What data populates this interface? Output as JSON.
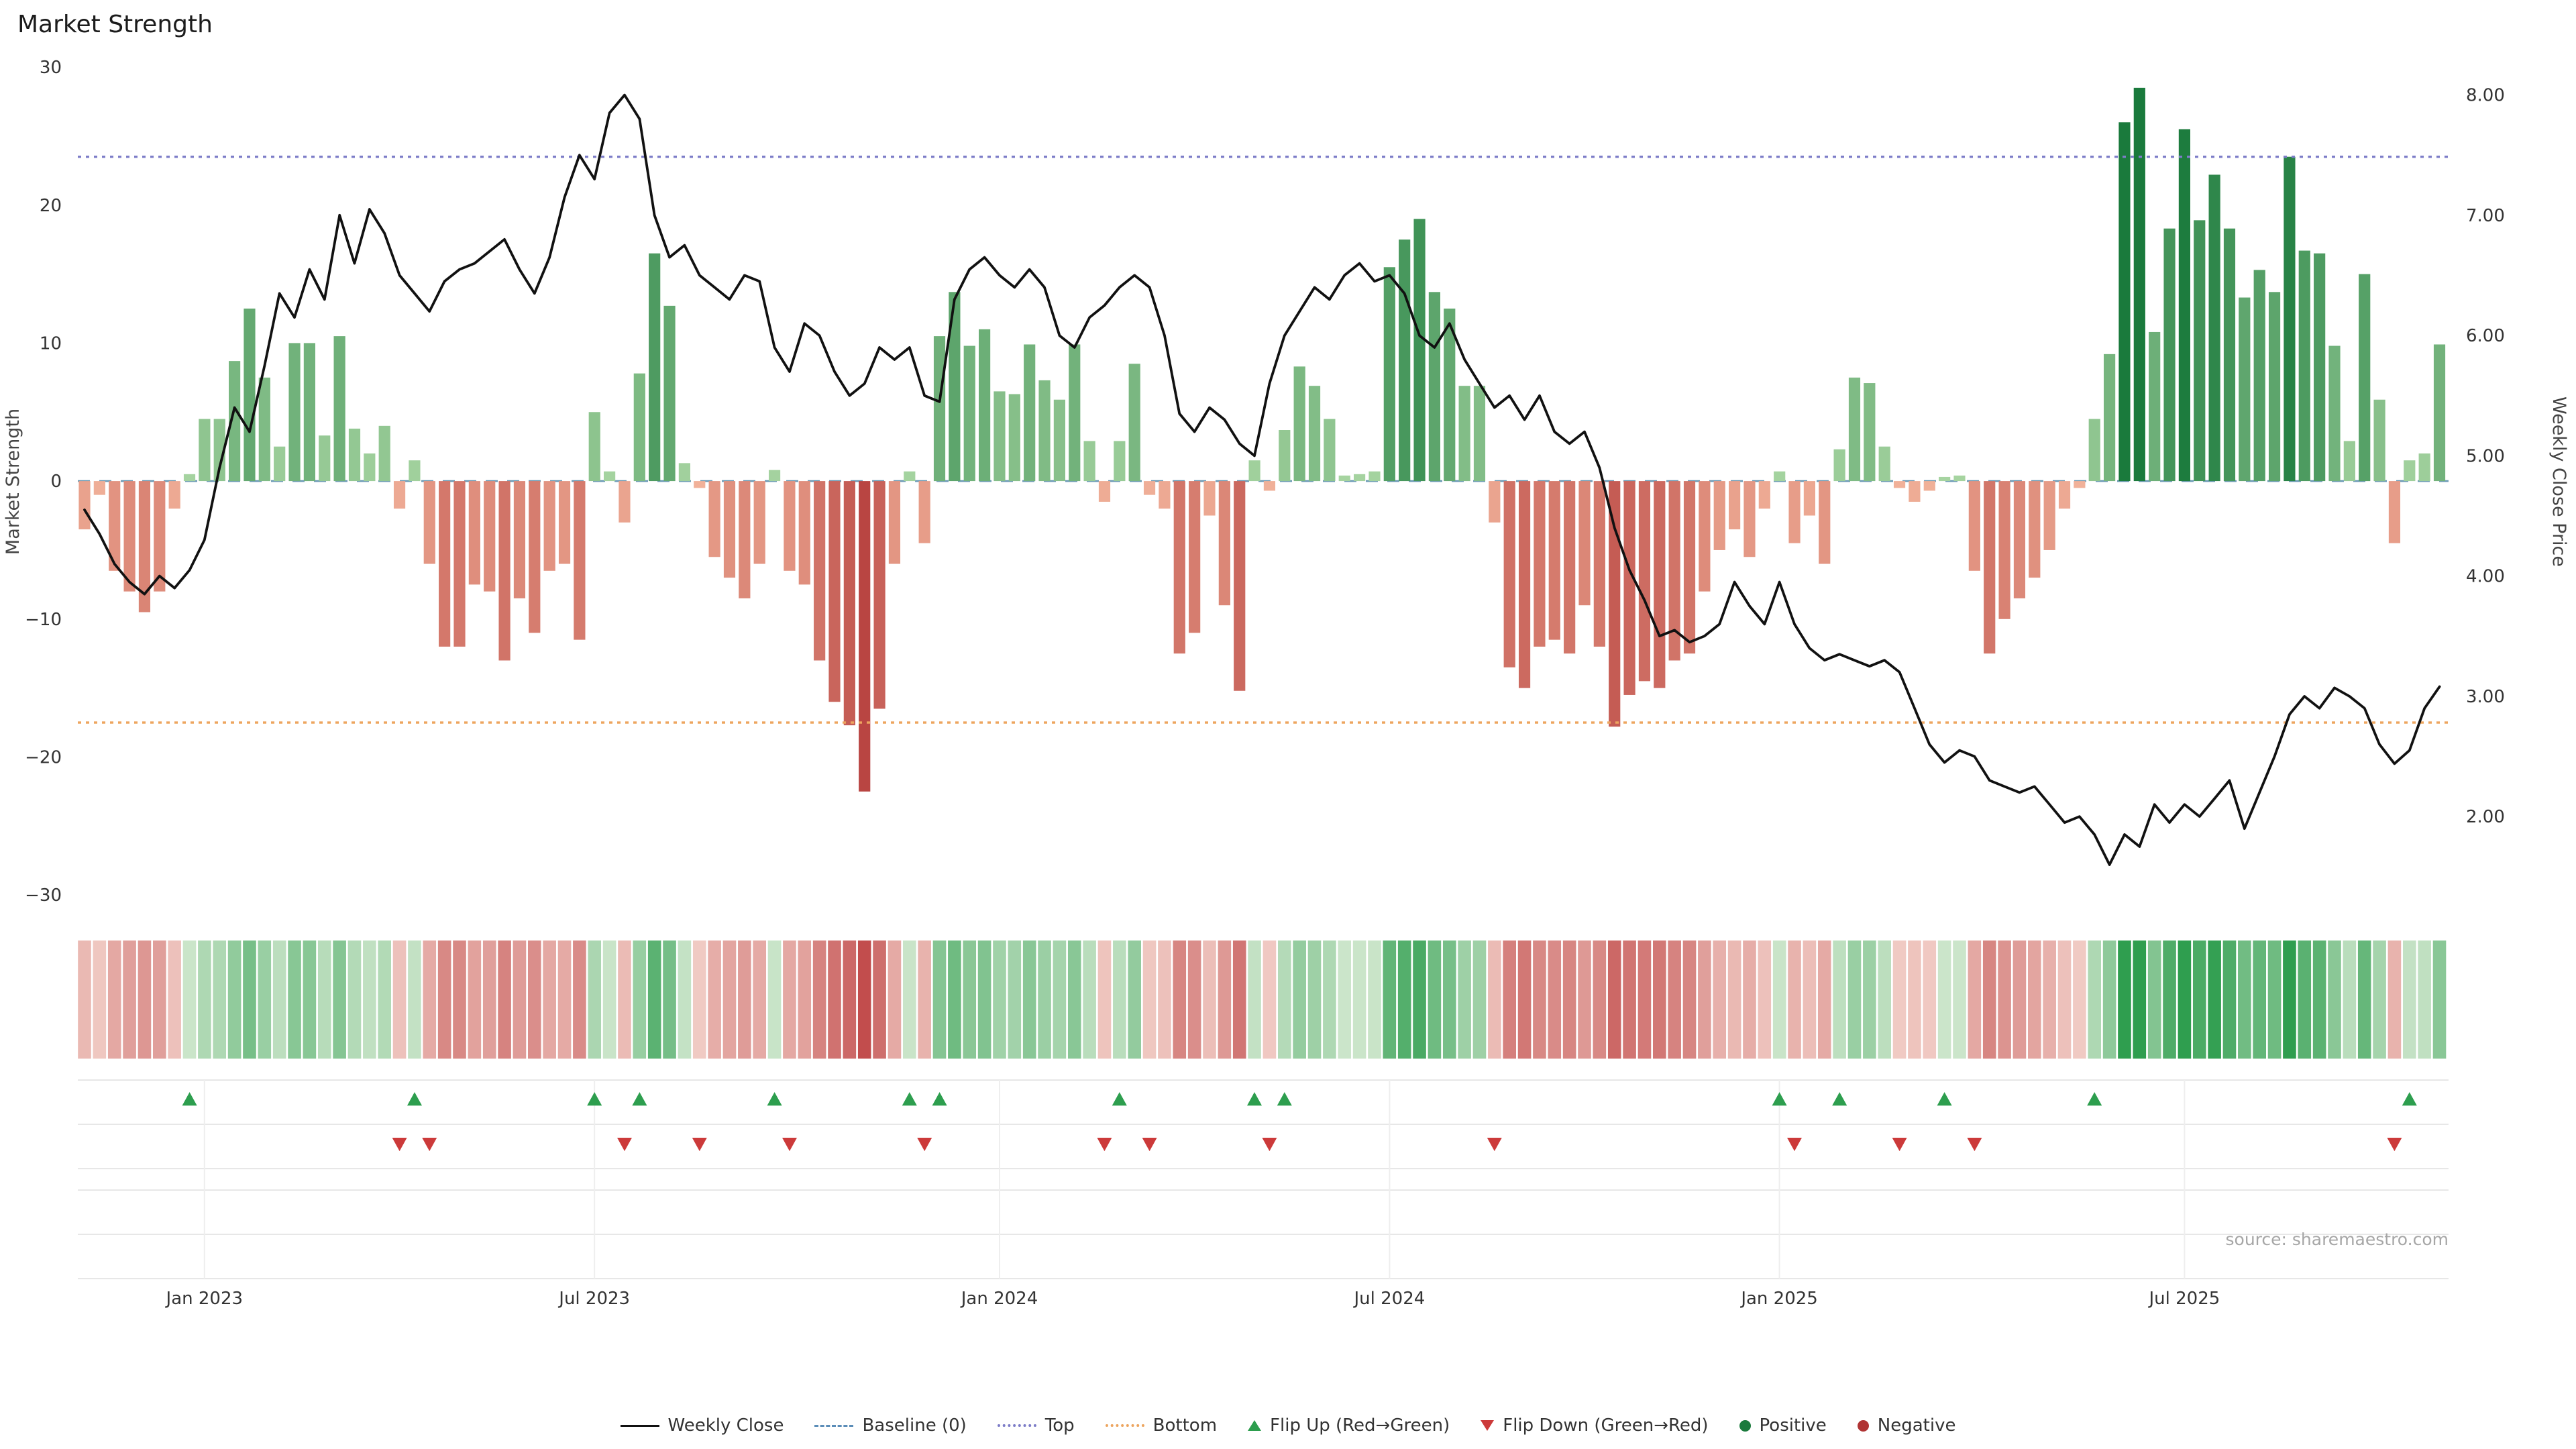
{
  "page": {
    "title": "Market Strength",
    "source": "source: sharemaestro.com"
  },
  "colors": {
    "positive_light": "#a8d5a2",
    "positive_dark": "#1a7a3c",
    "negative_light": "#f2b39b",
    "negative_dark": "#b03434",
    "heat_pos_light": "#e3f0dd",
    "heat_pos_dark": "#2f9e4f",
    "heat_neg_light": "#f8ded6",
    "heat_neg_dark": "#c14b4b",
    "line": "#111111",
    "baseline": "#6b9ab5",
    "top": "#7d7dc8",
    "bottom": "#eda55f",
    "flip_up": "#2d9e4e",
    "flip_down": "#cc3a3a",
    "axis_text": "#333333",
    "axis_title": "#444444",
    "source_text": "#a6a6a6",
    "grid": "#e7e7e7"
  },
  "chart_data": {
    "type": "bar+line",
    "title": "Market Strength",
    "n_weeks": 158,
    "x_ticks": {
      "indices": [
        8,
        34,
        61,
        87,
        113,
        140
      ],
      "labels": [
        "Jan 2023",
        "Jul 2023",
        "Jan 2024",
        "Jul 2024",
        "Jan 2025",
        "Jul 2025"
      ]
    },
    "y_left": {
      "label": "Market Strength",
      "tick_values": [
        30,
        20,
        10,
        0,
        -10,
        -20,
        -30
      ],
      "tick_labels": [
        "30",
        "20",
        "10",
        "0",
        "−10",
        "−20",
        "−30"
      ],
      "range": [
        -32,
        32
      ]
    },
    "y_right": {
      "label": "Weekly Close Price",
      "tick_values": [
        8,
        7,
        6,
        5,
        4,
        3,
        2
      ],
      "tick_labels": [
        "8.00",
        "7.00",
        "6.00",
        "5.00",
        "4.00",
        "3.00",
        "2.00"
      ],
      "range": [
        2,
        8
      ]
    },
    "reference_lines": [
      {
        "name": "Baseline (0)",
        "value": 0,
        "axis": "left",
        "style": "dashed"
      },
      {
        "name": "Top",
        "value": 23.5,
        "axis": "left",
        "style": "dotted"
      },
      {
        "name": "Bottom",
        "value": -17.5,
        "axis": "left",
        "style": "dotted"
      }
    ],
    "bar_series": {
      "name": "Market Strength",
      "axis": "left",
      "values": [
        -3.5,
        -1.0,
        -6.5,
        -8.0,
        -9.5,
        -8.0,
        -2.0,
        0.5,
        4.5,
        4.5,
        8.7,
        12.5,
        7.5,
        2.5,
        10.0,
        10.0,
        3.3,
        10.5,
        3.8,
        2.0,
        4.0,
        -2.0,
        1.5,
        -6.0,
        -12.0,
        -12.0,
        -7.5,
        -8.0,
        -13.0,
        -8.5,
        -11.0,
        -6.5,
        -6.0,
        -11.5,
        5.0,
        0.7,
        -3.0,
        7.8,
        16.5,
        12.7,
        1.3,
        -0.5,
        -5.5,
        -7.0,
        -8.5,
        -6.0,
        0.8,
        -6.5,
        -7.5,
        -13.0,
        -16.0,
        -17.7,
        -22.5,
        -16.5,
        -6.0,
        0.7,
        -4.5,
        10.5,
        13.7,
        9.8,
        11.0,
        6.5,
        6.3,
        9.9,
        7.3,
        5.9,
        9.9,
        2.9,
        -1.5,
        2.9,
        8.5,
        -1.0,
        -2.0,
        -12.5,
        -11.0,
        -2.5,
        -9.0,
        -15.2,
        1.5,
        -0.7,
        3.7,
        8.3,
        6.9,
        4.5,
        0.4,
        0.5,
        0.7,
        15.5,
        17.5,
        19.0,
        13.7,
        12.5,
        6.9,
        6.9,
        -3.0,
        -13.5,
        -15.0,
        -12.0,
        -11.5,
        -12.5,
        -9.0,
        -12.0,
        -17.8,
        -15.5,
        -14.5,
        -15.0,
        -13.0,
        -12.5,
        -8.0,
        -5.0,
        -3.5,
        -5.5,
        -2.0,
        0.7,
        -4.5,
        -2.5,
        -6.0,
        2.3,
        7.5,
        7.1,
        2.5,
        -0.5,
        -1.5,
        -0.7,
        0.3,
        0.4,
        -6.5,
        -12.5,
        -10.0,
        -8.5,
        -7.0,
        -5.0,
        -2.0,
        -0.5,
        4.5,
        9.2,
        26.0,
        28.5,
        10.8,
        18.3,
        25.5,
        18.9,
        22.2,
        18.3,
        13.3,
        15.3,
        13.7,
        23.5,
        16.7,
        16.5,
        9.8,
        2.9,
        15.0,
        5.9,
        -4.5,
        1.5,
        2.0,
        9.9
      ]
    },
    "line_series": {
      "name": "Weekly Close",
      "axis": "right",
      "values": [
        4.55,
        4.35,
        4.1,
        3.95,
        3.85,
        4.0,
        3.9,
        4.05,
        4.3,
        4.9,
        5.4,
        5.2,
        5.75,
        6.35,
        6.15,
        6.55,
        6.3,
        7.0,
        6.6,
        7.05,
        6.85,
        6.5,
        6.35,
        6.2,
        6.45,
        6.55,
        6.6,
        6.7,
        6.8,
        6.55,
        6.35,
        6.65,
        7.15,
        7.5,
        7.3,
        7.85,
        8.0,
        7.8,
        7.0,
        6.65,
        6.75,
        6.5,
        6.4,
        6.3,
        6.5,
        6.45,
        5.9,
        5.7,
        6.1,
        6.0,
        5.7,
        5.5,
        5.6,
        5.9,
        5.8,
        5.9,
        5.5,
        5.45,
        6.3,
        6.55,
        6.65,
        6.5,
        6.4,
        6.55,
        6.4,
        6.0,
        5.9,
        6.15,
        6.25,
        6.4,
        6.5,
        6.4,
        6.0,
        5.35,
        5.2,
        5.4,
        5.3,
        5.1,
        5.0,
        5.6,
        6.0,
        6.2,
        6.4,
        6.3,
        6.5,
        6.6,
        6.45,
        6.5,
        6.35,
        6.0,
        5.9,
        6.1,
        5.8,
        5.6,
        5.4,
        5.5,
        5.3,
        5.5,
        5.2,
        5.1,
        5.2,
        4.9,
        4.4,
        4.05,
        3.8,
        3.5,
        3.55,
        3.45,
        3.5,
        3.6,
        3.95,
        3.75,
        3.6,
        3.95,
        3.6,
        3.4,
        3.3,
        3.35,
        3.3,
        3.25,
        3.3,
        3.2,
        2.9,
        2.6,
        2.45,
        2.55,
        2.5,
        2.3,
        2.25,
        2.2,
        2.25,
        2.1,
        1.95,
        2.0,
        1.85,
        1.6,
        1.85,
        1.75,
        2.1,
        1.95,
        2.1,
        2.0,
        2.15,
        2.3,
        1.9,
        2.2,
        2.5,
        2.85,
        3.0,
        2.9,
        3.07,
        3.0,
        2.9,
        2.6,
        2.44,
        2.55,
        2.9,
        3.08
      ]
    },
    "flips": {
      "up_weeks": [
        7,
        22,
        34,
        37,
        46,
        55,
        57,
        69,
        78,
        80,
        113,
        117,
        124,
        134,
        155
      ],
      "down_weeks": [
        21,
        23,
        36,
        41,
        47,
        56,
        68,
        71,
        79,
        94,
        114,
        121,
        126,
        154
      ]
    },
    "heatmap_from": "bar_series"
  },
  "legend": {
    "items": [
      {
        "label": "Weekly Close",
        "glyph": "solid-line",
        "color": "#111111"
      },
      {
        "label": "Baseline (0)",
        "glyph": "dashed-line",
        "color": "#5b8db8"
      },
      {
        "label": "Top",
        "glyph": "dotted-line",
        "color": "#7d7dc8"
      },
      {
        "label": "Bottom",
        "glyph": "dotted-line",
        "color": "#eda55f"
      },
      {
        "label": "Flip Up (Red→Green)",
        "glyph": "triangle-up",
        "color": "#2d9e4e"
      },
      {
        "label": "Flip Down (Green→Red)",
        "glyph": "triangle-down",
        "color": "#cc3a3a"
      },
      {
        "label": "Positive",
        "glyph": "circle",
        "color": "#1a7a3c"
      },
      {
        "label": "Negative",
        "glyph": "circle",
        "color": "#b03434"
      }
    ]
  }
}
